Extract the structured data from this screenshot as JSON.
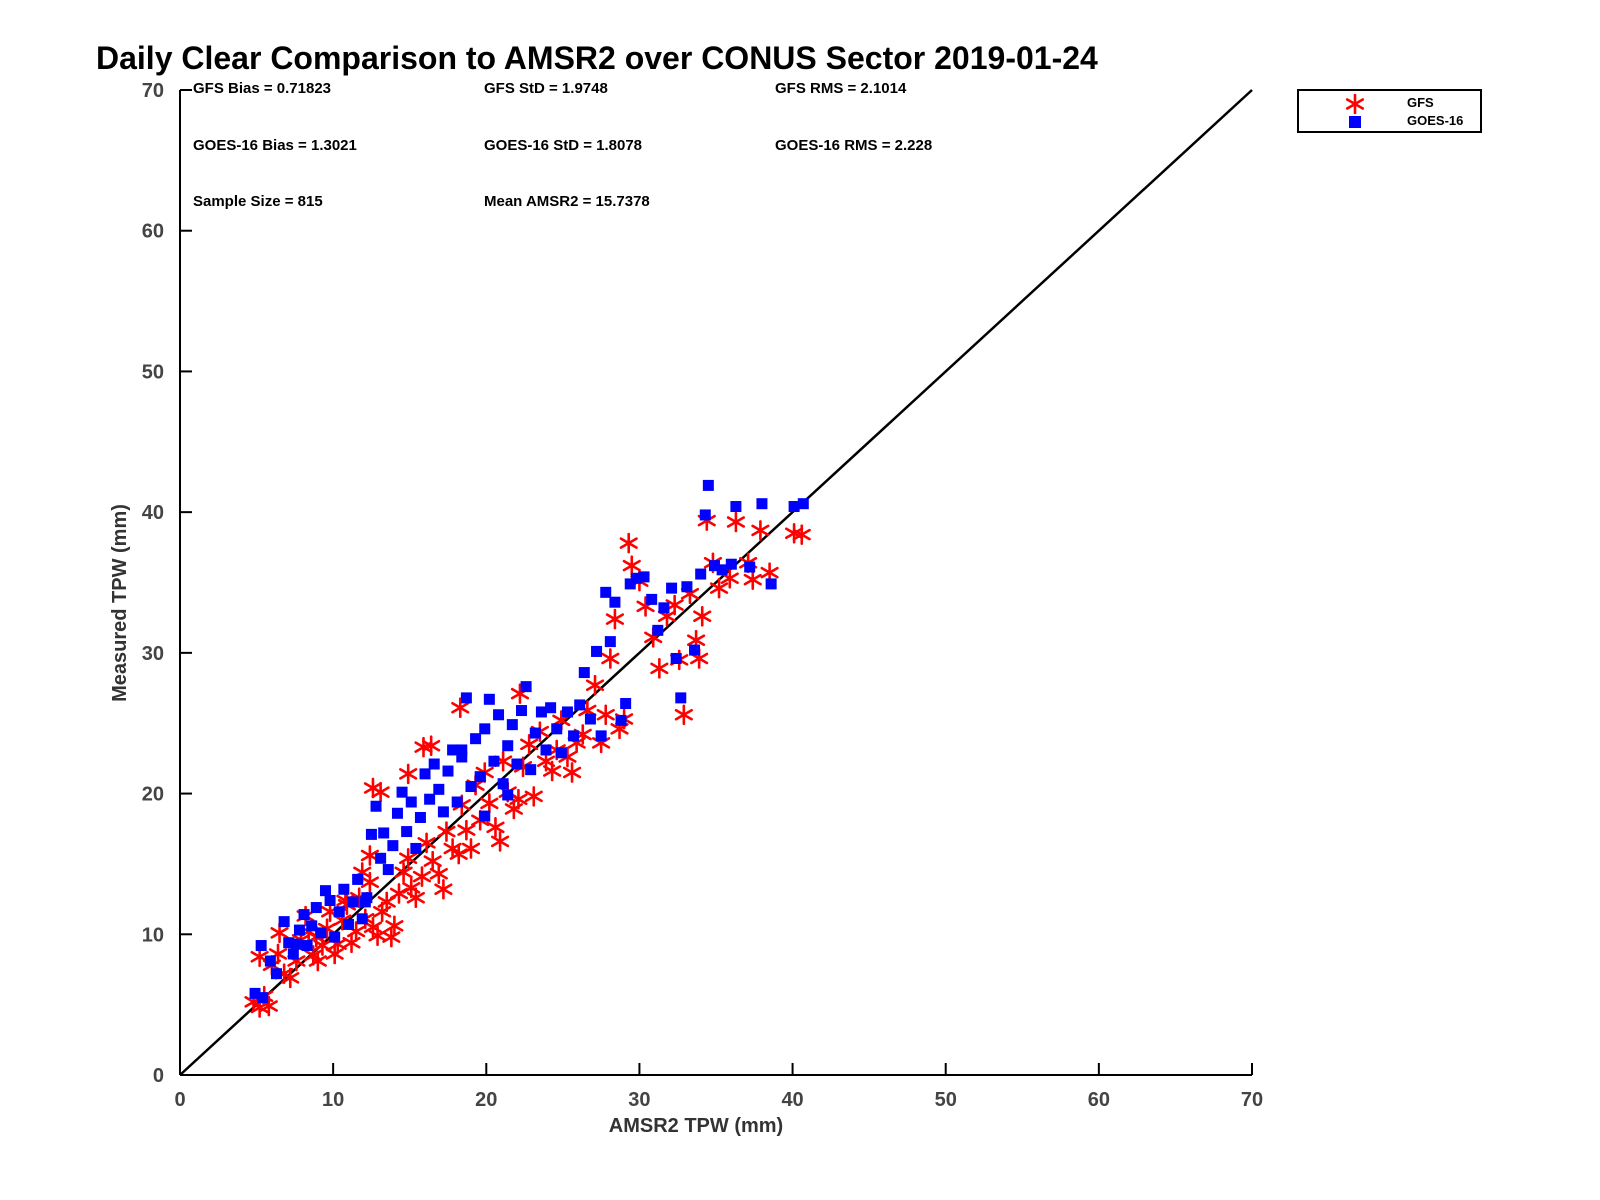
{
  "colors": {
    "gfs": "#ff0000",
    "goes16": "#0000ff",
    "axis": "#000000"
  },
  "chart_data": {
    "type": "scatter",
    "title": "Daily Clear Comparison to AMSR2 over CONUS Sector 2019-01-24",
    "xlabel": "AMSR2 TPW (mm)",
    "ylabel": "Measured TPW (mm)",
    "xlim": [
      0,
      70
    ],
    "ylim": [
      0,
      70
    ],
    "xticks": [
      "0",
      "10",
      "20",
      "30",
      "40",
      "50",
      "60",
      "70"
    ],
    "yticks": [
      "0",
      "10",
      "20",
      "30",
      "40",
      "50",
      "60",
      "70"
    ],
    "grid": false,
    "legend_position": "top-right outside",
    "reference_line": {
      "x": [
        0,
        70
      ],
      "y": [
        0,
        70
      ]
    },
    "stats": {
      "gfs_bias": "GFS Bias = 0.71823",
      "gfs_std": "GFS StD = 1.9748",
      "gfs_rms": "GFS RMS = 2.1014",
      "goes_bias": "GOES-16 Bias = 1.3021",
      "goes_std": "GOES-16 StD = 1.8078",
      "goes_rms": "GOES-16 RMS = 2.228",
      "sample_size": "Sample Size = 815",
      "mean_amsr2": "Mean AMSR2 = 15.7378"
    },
    "series": [
      {
        "name": "GFS",
        "marker": "asterisk",
        "points": [
          [
            4.8,
            5.2
          ],
          [
            5.2,
            4.8
          ],
          [
            5.5,
            5.6
          ],
          [
            5.8,
            4.9
          ],
          [
            5.2,
            8.4
          ],
          [
            6.0,
            7.8
          ],
          [
            6.4,
            8.6
          ],
          [
            6.8,
            7.2
          ],
          [
            7.2,
            6.9
          ],
          [
            7.6,
            8.1
          ],
          [
            7.9,
            9.6
          ],
          [
            8.2,
            11.3
          ],
          [
            8.4,
            10.2
          ],
          [
            8.7,
            8.5
          ],
          [
            9.0,
            8.1
          ],
          [
            9.3,
            9.2
          ],
          [
            9.6,
            10.4
          ],
          [
            9.8,
            11.6
          ],
          [
            10.1,
            8.6
          ],
          [
            10.3,
            9.3
          ],
          [
            10.6,
            11.0
          ],
          [
            10.9,
            12.1
          ],
          [
            11.2,
            9.4
          ],
          [
            11.5,
            10.2
          ],
          [
            11.7,
            12.6
          ],
          [
            12.1,
            11.1
          ],
          [
            12.4,
            13.7
          ],
          [
            12.6,
            10.5
          ],
          [
            12.9,
            9.9
          ],
          [
            13.2,
            11.6
          ],
          [
            13.5,
            12.3
          ],
          [
            13.8,
            9.8
          ],
          [
            14.0,
            10.6
          ],
          [
            14.3,
            12.9
          ],
          [
            14.6,
            14.4
          ],
          [
            14.9,
            15.4
          ],
          [
            15.1,
            13.3
          ],
          [
            15.4,
            12.6
          ],
          [
            15.8,
            14.1
          ],
          [
            16.1,
            16.5
          ],
          [
            16.5,
            15.2
          ],
          [
            16.9,
            14.3
          ],
          [
            17.2,
            13.2
          ],
          [
            17.4,
            17.3
          ],
          [
            17.8,
            16.1
          ],
          [
            18.2,
            15.7
          ],
          [
            18.4,
            19.2
          ],
          [
            18.7,
            17.4
          ],
          [
            19.0,
            16.1
          ],
          [
            19.3,
            20.6
          ],
          [
            19.6,
            18.1
          ],
          [
            19.9,
            21.5
          ],
          [
            20.2,
            19.3
          ],
          [
            20.6,
            17.6
          ],
          [
            20.9,
            16.6
          ],
          [
            21.1,
            22.3
          ],
          [
            21.4,
            20.1
          ],
          [
            21.8,
            18.9
          ],
          [
            22.1,
            19.6
          ],
          [
            22.4,
            21.9
          ],
          [
            22.8,
            23.5
          ],
          [
            23.1,
            19.8
          ],
          [
            23.5,
            24.4
          ],
          [
            23.9,
            22.3
          ],
          [
            24.3,
            21.6
          ],
          [
            24.6,
            23.1
          ],
          [
            24.9,
            25.2
          ],
          [
            25.3,
            22.6
          ],
          [
            25.6,
            21.5
          ],
          [
            25.9,
            23.6
          ],
          [
            26.3,
            24.2
          ],
          [
            26.6,
            25.9
          ],
          [
            27.1,
            27.7
          ],
          [
            27.5,
            23.6
          ],
          [
            27.8,
            25.6
          ],
          [
            28.1,
            29.6
          ],
          [
            28.4,
            32.4
          ],
          [
            28.7,
            24.6
          ],
          [
            29.0,
            25.3
          ],
          [
            29.3,
            37.8
          ],
          [
            29.5,
            36.2
          ],
          [
            30.0,
            35.1
          ],
          [
            30.4,
            33.3
          ],
          [
            30.9,
            31.1
          ],
          [
            31.3,
            28.9
          ],
          [
            31.8,
            32.6
          ],
          [
            32.3,
            33.4
          ],
          [
            32.6,
            29.5
          ],
          [
            32.9,
            25.6
          ],
          [
            33.3,
            34.2
          ],
          [
            33.7,
            30.9
          ],
          [
            33.9,
            29.6
          ],
          [
            34.1,
            32.6
          ],
          [
            34.4,
            39.4
          ],
          [
            34.8,
            36.4
          ],
          [
            35.2,
            34.6
          ],
          [
            35.9,
            35.3
          ],
          [
            36.3,
            39.3
          ],
          [
            37.1,
            36.4
          ],
          [
            37.4,
            35.2
          ],
          [
            37.9,
            38.7
          ],
          [
            38.5,
            35.7
          ],
          [
            40.1,
            38.5
          ],
          [
            40.6,
            38.4
          ],
          [
            12.6,
            20.4
          ],
          [
            13.1,
            20.1
          ],
          [
            15.9,
            23.3
          ],
          [
            16.4,
            23.4
          ],
          [
            18.3,
            26.1
          ],
          [
            22.2,
            27.1
          ],
          [
            12.4,
            15.6
          ],
          [
            14.9,
            21.4
          ],
          [
            10.8,
            12.4
          ],
          [
            8.9,
            9.8
          ],
          [
            6.5,
            10.1
          ],
          [
            11.9,
            14.4
          ]
        ]
      },
      {
        "name": "GOES-16",
        "marker": "square",
        "points": [
          [
            4.9,
            5.8
          ],
          [
            5.4,
            5.5
          ],
          [
            5.3,
            9.2
          ],
          [
            5.9,
            8.1
          ],
          [
            6.3,
            7.2
          ],
          [
            6.8,
            10.9
          ],
          [
            7.1,
            9.4
          ],
          [
            7.4,
            8.6
          ],
          [
            7.8,
            10.3
          ],
          [
            8.1,
            11.4
          ],
          [
            8.3,
            9.2
          ],
          [
            8.6,
            10.6
          ],
          [
            8.9,
            11.9
          ],
          [
            9.2,
            10.1
          ],
          [
            9.5,
            13.1
          ],
          [
            9.8,
            12.4
          ],
          [
            10.1,
            9.8
          ],
          [
            10.4,
            11.6
          ],
          [
            10.7,
            13.2
          ],
          [
            11.0,
            10.7
          ],
          [
            11.3,
            12.3
          ],
          [
            11.6,
            13.9
          ],
          [
            11.9,
            11.1
          ],
          [
            12.2,
            12.6
          ],
          [
            12.5,
            17.1
          ],
          [
            12.8,
            19.1
          ],
          [
            13.1,
            15.4
          ],
          [
            13.3,
            17.2
          ],
          [
            13.6,
            14.6
          ],
          [
            13.9,
            16.3
          ],
          [
            14.2,
            18.6
          ],
          [
            14.5,
            20.1
          ],
          [
            14.8,
            17.3
          ],
          [
            15.1,
            19.4
          ],
          [
            15.4,
            16.1
          ],
          [
            15.7,
            18.3
          ],
          [
            16.0,
            21.4
          ],
          [
            16.3,
            19.6
          ],
          [
            16.6,
            22.1
          ],
          [
            16.9,
            20.3
          ],
          [
            17.2,
            18.7
          ],
          [
            17.5,
            21.6
          ],
          [
            17.8,
            23.1
          ],
          [
            18.1,
            19.4
          ],
          [
            18.4,
            22.6
          ],
          [
            18.7,
            26.8
          ],
          [
            19.0,
            20.5
          ],
          [
            19.3,
            23.9
          ],
          [
            19.6,
            21.2
          ],
          [
            19.9,
            24.6
          ],
          [
            20.2,
            26.7
          ],
          [
            20.5,
            22.3
          ],
          [
            20.8,
            25.6
          ],
          [
            21.1,
            20.7
          ],
          [
            21.4,
            23.4
          ],
          [
            21.7,
            24.9
          ],
          [
            22.0,
            22.1
          ],
          [
            22.3,
            25.9
          ],
          [
            22.6,
            27.6
          ],
          [
            22.9,
            21.7
          ],
          [
            23.2,
            24.3
          ],
          [
            23.6,
            25.8
          ],
          [
            23.9,
            23.1
          ],
          [
            24.2,
            26.1
          ],
          [
            24.6,
            24.6
          ],
          [
            24.9,
            22.9
          ],
          [
            25.3,
            25.8
          ],
          [
            25.7,
            24.1
          ],
          [
            26.1,
            26.3
          ],
          [
            26.4,
            28.6
          ],
          [
            26.8,
            25.3
          ],
          [
            27.2,
            30.1
          ],
          [
            27.5,
            24.1
          ],
          [
            27.8,
            34.3
          ],
          [
            28.1,
            30.8
          ],
          [
            28.4,
            33.6
          ],
          [
            28.8,
            25.2
          ],
          [
            29.1,
            26.4
          ],
          [
            29.4,
            34.9
          ],
          [
            29.8,
            35.3
          ],
          [
            30.3,
            35.4
          ],
          [
            30.8,
            33.8
          ],
          [
            31.2,
            31.6
          ],
          [
            31.6,
            33.2
          ],
          [
            32.1,
            34.6
          ],
          [
            32.4,
            29.6
          ],
          [
            32.7,
            26.8
          ],
          [
            33.1,
            34.7
          ],
          [
            33.6,
            30.2
          ],
          [
            34.0,
            35.6
          ],
          [
            34.5,
            41.9
          ],
          [
            34.9,
            36.2
          ],
          [
            35.4,
            35.9
          ],
          [
            36.0,
            36.3
          ],
          [
            36.3,
            40.4
          ],
          [
            37.2,
            36.1
          ],
          [
            38.0,
            40.6
          ],
          [
            38.6,
            34.9
          ],
          [
            40.1,
            40.4
          ],
          [
            40.7,
            40.6
          ],
          [
            34.3,
            39.8
          ],
          [
            18.4,
            23.1
          ],
          [
            19.9,
            18.4
          ],
          [
            21.4,
            19.9
          ],
          [
            12.1,
            12.3
          ],
          [
            7.6,
            9.3
          ]
        ]
      }
    ]
  }
}
